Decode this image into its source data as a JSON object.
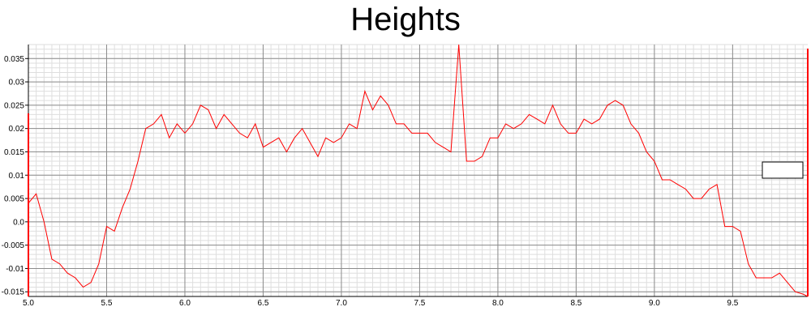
{
  "chart_data": {
    "type": "line",
    "title": "Heights",
    "xlim": [
      5.0,
      9.98
    ],
    "ylim": [
      -0.016,
      0.038
    ],
    "grid": true,
    "x_ticks": [
      "5.0",
      "5.5",
      "6.0",
      "6.5",
      "7.0",
      "7.5",
      "8.0",
      "8.5",
      "9.0",
      "9.5"
    ],
    "y_ticks": [
      "0.035",
      "0.03",
      "0.025",
      "0.02",
      "0.015",
      "0.01",
      "0.005",
      "0.0",
      "-0.005",
      "-0.01",
      "-0.015"
    ],
    "legend": {
      "visible": true,
      "position": "right",
      "entries": []
    },
    "series": [
      {
        "color": "#ff0000",
        "x": [
          5.0,
          5.05,
          5.1,
          5.15,
          5.2,
          5.25,
          5.3,
          5.35,
          5.4,
          5.45,
          5.5,
          5.55,
          5.6,
          5.65,
          5.7,
          5.75,
          5.8,
          5.85,
          5.9,
          5.95,
          6.0,
          6.05,
          6.1,
          6.15,
          6.2,
          6.25,
          6.3,
          6.35,
          6.4,
          6.45,
          6.5,
          6.55,
          6.6,
          6.65,
          6.7,
          6.75,
          6.8,
          6.85,
          6.9,
          6.95,
          7.0,
          7.05,
          7.1,
          7.15,
          7.2,
          7.25,
          7.3,
          7.35,
          7.4,
          7.45,
          7.5,
          7.55,
          7.6,
          7.65,
          7.7,
          7.75,
          7.8,
          7.85,
          7.9,
          7.95,
          8.0,
          8.05,
          8.1,
          8.15,
          8.2,
          8.25,
          8.3,
          8.35,
          8.4,
          8.45,
          8.5,
          8.55,
          8.6,
          8.65,
          8.7,
          8.75,
          8.8,
          8.85,
          8.9,
          8.95,
          9.0,
          9.05,
          9.1,
          9.15,
          9.2,
          9.25,
          9.3,
          9.35,
          9.4,
          9.45,
          9.5,
          9.55,
          9.6,
          9.65,
          9.7,
          9.75,
          9.8,
          9.85,
          9.9,
          9.95,
          9.98
        ],
        "y": [
          0.004,
          0.006,
          0.0,
          -0.008,
          -0.009,
          -0.011,
          -0.012,
          -0.014,
          -0.013,
          -0.009,
          -0.001,
          -0.002,
          0.003,
          0.007,
          0.013,
          0.02,
          0.021,
          0.023,
          0.018,
          0.021,
          0.019,
          0.021,
          0.025,
          0.024,
          0.02,
          0.023,
          0.021,
          0.019,
          0.018,
          0.021,
          0.016,
          0.017,
          0.018,
          0.015,
          0.018,
          0.02,
          0.017,
          0.014,
          0.018,
          0.017,
          0.018,
          0.021,
          0.02,
          0.028,
          0.024,
          0.027,
          0.025,
          0.021,
          0.021,
          0.019,
          0.019,
          0.019,
          0.017,
          0.016,
          0.015,
          0.038,
          0.013,
          0.013,
          0.014,
          0.018,
          0.018,
          0.021,
          0.02,
          0.021,
          0.023,
          0.022,
          0.021,
          0.025,
          0.021,
          0.019,
          0.019,
          0.022,
          0.021,
          0.022,
          0.025,
          0.026,
          0.025,
          0.021,
          0.019,
          0.015,
          0.013,
          0.009,
          0.009,
          0.008,
          0.007,
          0.005,
          0.005,
          0.007,
          0.008,
          -0.001,
          -0.001,
          -0.002,
          -0.009,
          -0.012,
          -0.012,
          -0.012,
          -0.011,
          -0.013,
          -0.015,
          -0.0155,
          -0.016
        ]
      }
    ]
  }
}
